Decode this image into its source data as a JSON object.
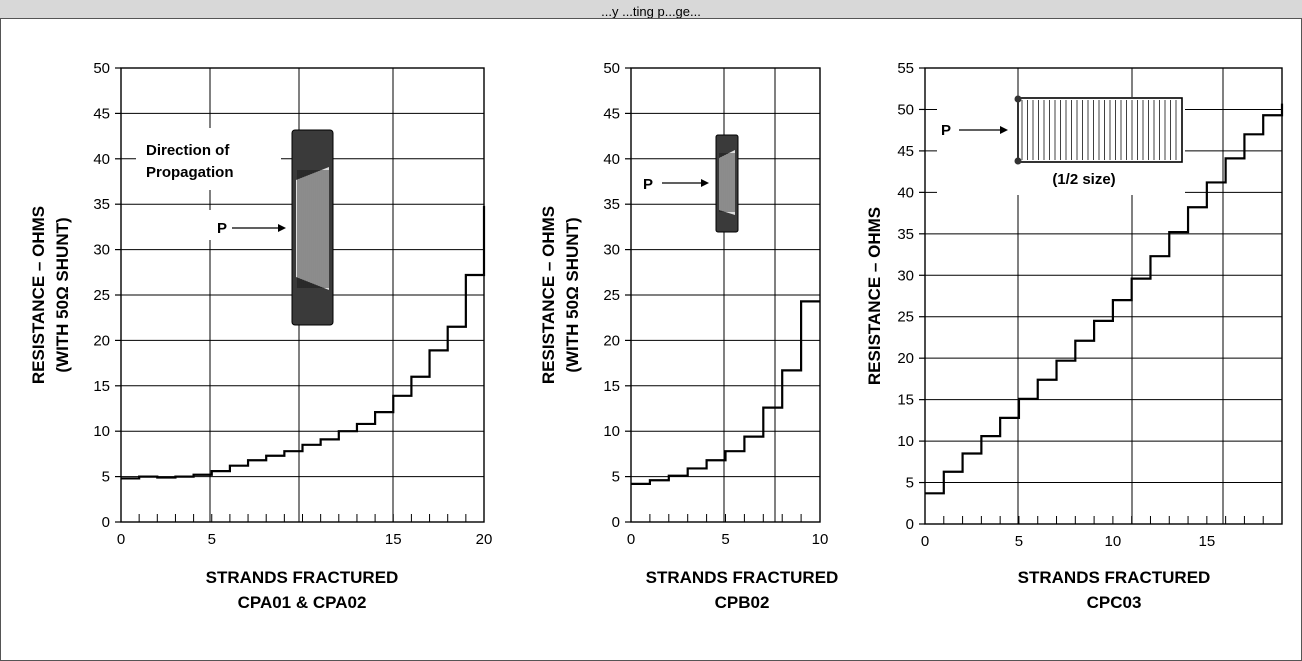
{
  "header": {
    "text": "...y ...ting p...ge..."
  },
  "chart_data": [
    {
      "type": "line",
      "step": true,
      "xlabel": "STRANDS FRACTURED",
      "subtitle": "CPA01 & CPA02",
      "ylabel": [
        "RESISTANCE – OHMS",
        "(WITH 50Ω SHUNT)"
      ],
      "xlim": [
        0,
        20
      ],
      "ylim": [
        0,
        50
      ],
      "xticks": [
        0,
        5,
        15,
        20
      ],
      "xtick_positions": [
        0,
        5,
        15,
        20
      ],
      "yticks": [
        0,
        5,
        10,
        15,
        20,
        25,
        30,
        35,
        40,
        45,
        50
      ],
      "annotations": [
        "Direction of",
        "Propagation",
        "P"
      ],
      "x": [
        0,
        1,
        2,
        3,
        4,
        5,
        6,
        7,
        8,
        9,
        10,
        11,
        12,
        13,
        14,
        15,
        16,
        17,
        18,
        19,
        20
      ],
      "y": [
        4.8,
        5.0,
        4.9,
        5.0,
        5.2,
        5.6,
        6.2,
        6.8,
        7.3,
        7.8,
        8.5,
        9.1,
        10.0,
        10.8,
        12.1,
        13.9,
        16.0,
        18.9,
        21.5,
        27.2,
        34.8
      ]
    },
    {
      "type": "line",
      "step": true,
      "xlabel": "STRANDS FRACTURED",
      "subtitle": "CPB02",
      "ylabel": [
        "RESISTANCE – OHMS",
        "(WITH 50Ω SHUNT)"
      ],
      "xlim": [
        0,
        10
      ],
      "ylim": [
        0,
        50
      ],
      "xticks": [
        0,
        5,
        10
      ],
      "yticks": [
        0,
        5,
        10,
        15,
        20,
        25,
        30,
        35,
        40,
        45,
        50
      ],
      "annotations": [
        "P"
      ],
      "x": [
        0,
        1,
        2,
        3,
        4,
        5,
        6,
        7,
        8,
        9,
        10
      ],
      "y": [
        4.2,
        4.6,
        5.1,
        5.9,
        6.8,
        7.8,
        9.4,
        12.6,
        16.7,
        24.3,
        24.3
      ]
    },
    {
      "type": "line",
      "step": true,
      "xlabel": "STRANDS FRACTURED",
      "subtitle": "CPC03",
      "ylabel": [
        "RESISTANCE – OHMS"
      ],
      "xlim": [
        0,
        19
      ],
      "ylim": [
        0,
        55
      ],
      "xticks": [
        0,
        5,
        10,
        15
      ],
      "yticks": [
        0,
        5,
        10,
        15,
        20,
        25,
        30,
        35,
        40,
        45,
        50,
        55
      ],
      "annotations": [
        "P",
        "(1/2 size)"
      ],
      "x": [
        0,
        1,
        2,
        3,
        4,
        5,
        6,
        7,
        8,
        9,
        10,
        11,
        12,
        13,
        14,
        15,
        16,
        17,
        18,
        19
      ],
      "y": [
        3.7,
        6.3,
        8.5,
        10.6,
        12.8,
        15.1,
        17.4,
        19.7,
        22.1,
        24.5,
        27.0,
        29.6,
        32.3,
        35.2,
        38.2,
        41.2,
        44.1,
        47.0,
        49.3,
        50.7
      ]
    }
  ]
}
